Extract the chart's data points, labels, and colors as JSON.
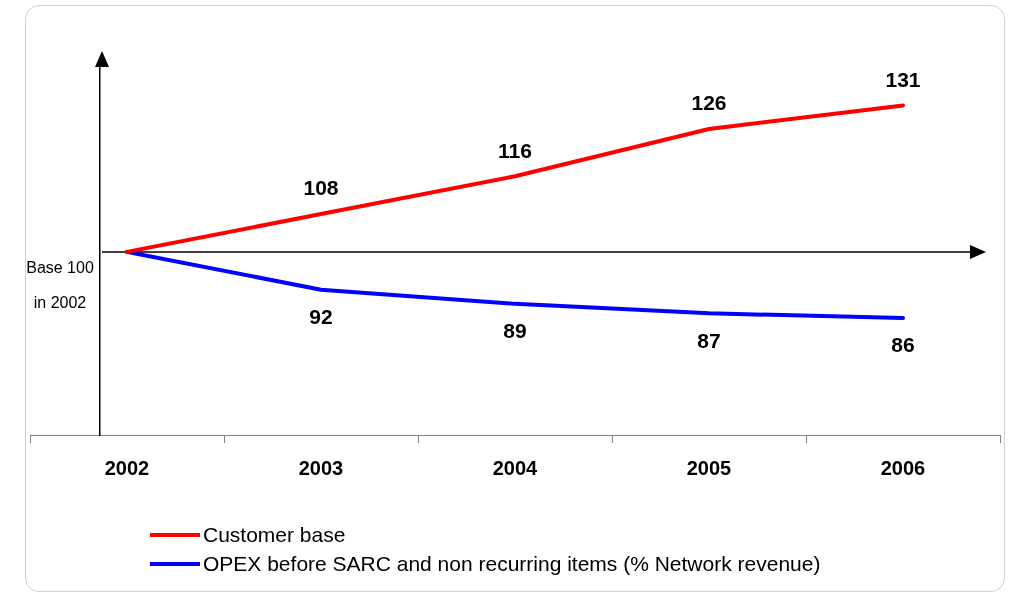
{
  "chart_data": {
    "type": "line",
    "categories": [
      "2002",
      "2003",
      "2004",
      "2005",
      "2006"
    ],
    "series": [
      {
        "name": "Customer base",
        "color": "#ff0000",
        "values": [
          100,
          108,
          116,
          126,
          131
        ],
        "value_labels": [
          null,
          "108",
          "116",
          "126",
          "131"
        ]
      },
      {
        "name": "OPEX before SARC and non recurring items (% Network revenue)",
        "color": "#0000ff",
        "values": [
          100,
          92,
          89,
          87,
          86
        ],
        "value_labels": [
          null,
          "92",
          "89",
          "87",
          "86"
        ]
      }
    ],
    "ref_lines": [
      {
        "axis": "y",
        "value": 100
      }
    ],
    "annotations": [
      "Base 100 in 2002"
    ],
    "grid": false,
    "legend": "bottom",
    "marker": "none",
    "line_style": "solid",
    "tick_labels": "x"
  }
}
